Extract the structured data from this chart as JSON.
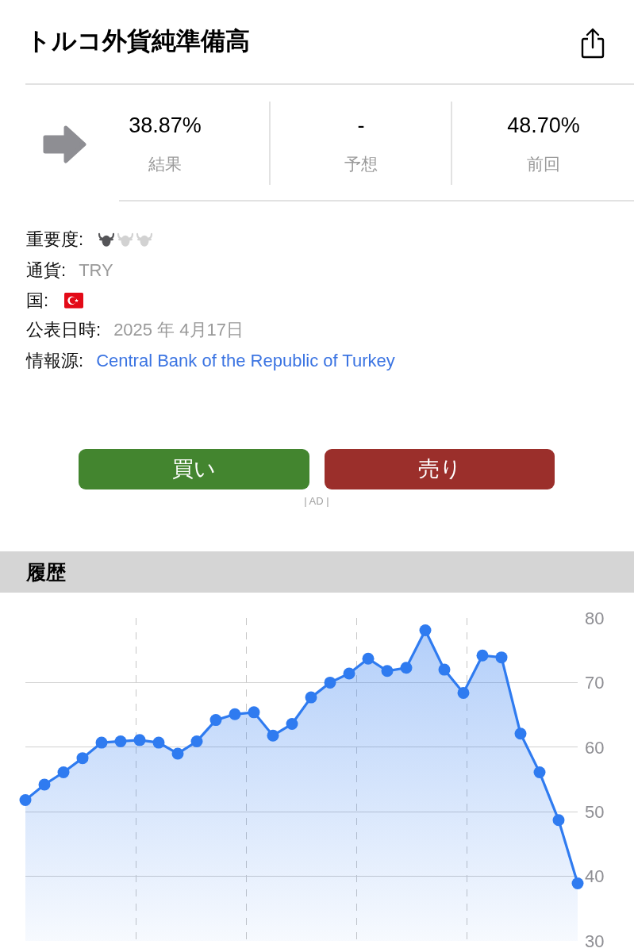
{
  "chart_data": [
    {
      "type": "other",
      "title": "トルコ外貨純準備高",
      "annotations": [
        "38.87%",
        "結果",
        "-",
        "予想",
        "48.70%",
        "前回",
        "重要度:",
        "通貨:",
        "TRY",
        "国:",
        "公表日時:",
        "2025 年 4月17日",
        "情報源:",
        "Central Bank of the Republic of Turkey",
        "買い",
        "売り",
        "| AD |"
      ]
    },
    {
      "type": "area",
      "title": "履歴",
      "categories": [
        null,
        null,
        null,
        null,
        null,
        null,
        null,
        null,
        null,
        null,
        null,
        null,
        null,
        null,
        null,
        null,
        null,
        null,
        null,
        null,
        null,
        null,
        null,
        null,
        null,
        null,
        null,
        null,
        null,
        null
      ],
      "values": [
        51.8,
        54.2,
        56.1,
        58.3,
        60.7,
        60.9,
        61.1,
        60.7,
        59.0,
        60.9,
        64.2,
        65.1,
        65.4,
        61.8,
        63.6,
        67.7,
        70.0,
        71.4,
        73.7,
        71.8,
        72.3,
        78.1,
        72.0,
        68.4,
        74.2,
        73.9,
        62.1,
        56.1,
        48.7,
        38.9
      ],
      "color": "#2f7bf0",
      "ylim": [
        30,
        80
      ],
      "yticks": [
        30,
        40,
        50,
        60,
        70,
        80
      ],
      "grid": true,
      "marker": "circle"
    }
  ]
}
